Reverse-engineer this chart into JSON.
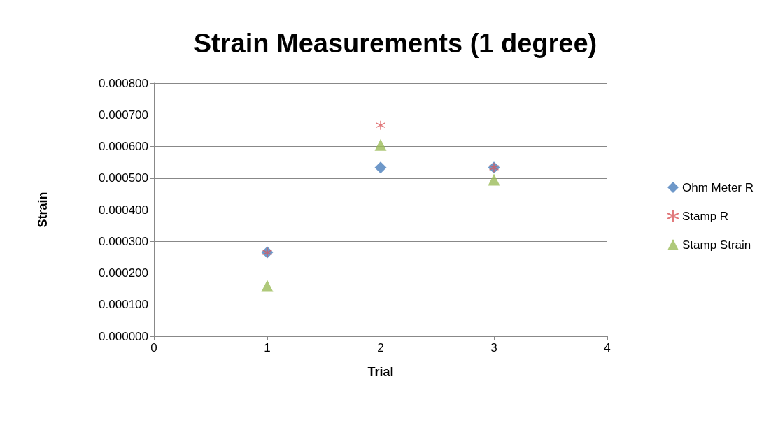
{
  "chart_data": {
    "type": "scatter",
    "title": "Strain Measurements (1 degree)",
    "xlabel": "Trial",
    "ylabel": "Strain",
    "x": [
      1,
      2,
      3
    ],
    "series": [
      {
        "name": "Ohm Meter R",
        "color": "#4a7ebb",
        "marker": "diamond",
        "values": [
          0.000265,
          0.000533,
          0.000533
        ]
      },
      {
        "name": "Stamp R",
        "color": "#d9585a",
        "marker": "cross",
        "values": [
          0.000265,
          0.000667,
          0.000533
        ]
      },
      {
        "name": "Stamp Strain",
        "color": "#9bbb59",
        "marker": "triangle",
        "values": [
          0.000159,
          0.000605,
          0.000495
        ]
      }
    ],
    "xlim": [
      0,
      4
    ],
    "xticks": [
      0,
      1,
      2,
      3,
      4
    ],
    "ylim": [
      0,
      0.0008
    ],
    "yticks": [
      {
        "value": 0,
        "label": "0.000000"
      },
      {
        "value": 0.0001,
        "label": "0.000100"
      },
      {
        "value": 0.0002,
        "label": "0.000200"
      },
      {
        "value": 0.0003,
        "label": "0.000300"
      },
      {
        "value": 0.0004,
        "label": "0.000400"
      },
      {
        "value": 0.0005,
        "label": "0.000500"
      },
      {
        "value": 0.0006,
        "label": "0.000600"
      },
      {
        "value": 0.0007,
        "label": "0.000700"
      },
      {
        "value": 0.0008,
        "label": "0.000800"
      }
    ],
    "grid": "y",
    "legend": "right"
  }
}
